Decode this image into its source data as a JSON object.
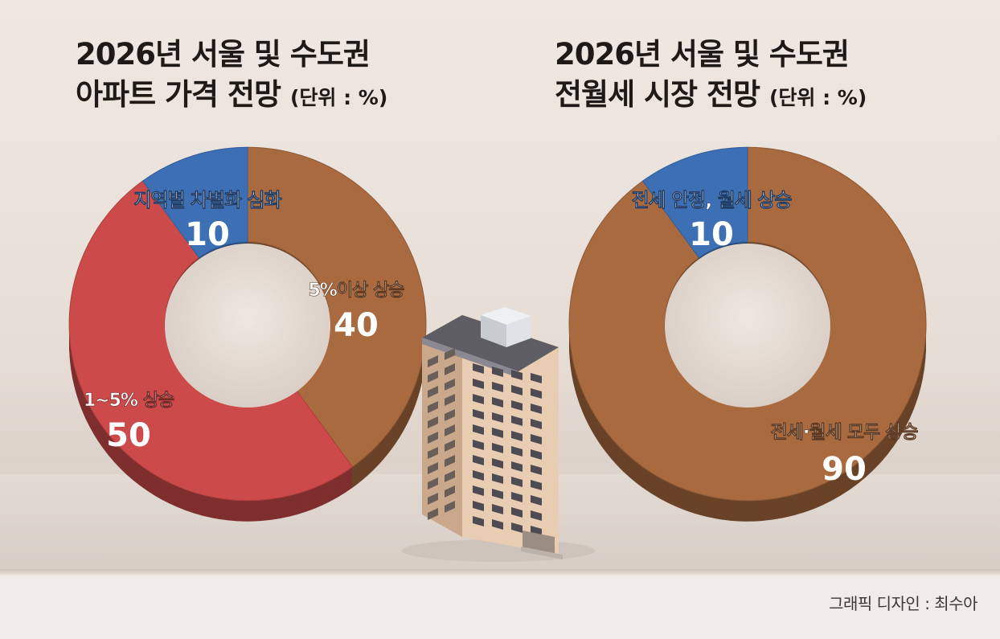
{
  "titles": {
    "left_line1": "2026년 서울 및 수도권",
    "left_line2": "아파트 가격 전망",
    "right_line1": "2026년 서울 및 수도권",
    "right_line2": "전월세 시장 전망",
    "unit": "(단위 : %)"
  },
  "credit": "그래픽 디자인 : 최수아",
  "colors": {
    "brown": "#a96a3f",
    "brown_dark": "#7a4526",
    "red": "#cd4a4a",
    "red_dark": "#8f2a2a",
    "blue": "#3d6fb5",
    "blue_dark": "#274d88"
  },
  "chart_data": [
    {
      "type": "pie",
      "title": "2026년 서울 및 수도권 아파트 가격 전망",
      "unit": "(단위 : %)",
      "slices": [
        {
          "label": "5%이상 상승",
          "value": 40,
          "color": "#a96a3f"
        },
        {
          "label": "1~5% 상승",
          "value": 50,
          "color": "#cd4a4a"
        },
        {
          "label": "지역별 차별화 심화",
          "value": 10,
          "color": "#3d6fb5"
        }
      ]
    },
    {
      "type": "pie",
      "title": "2026년 서울 및 수도권 전월세 시장 전망",
      "unit": "(단위 : %)",
      "slices": [
        {
          "label": "전세·월세 모두 상승",
          "value": 90,
          "color": "#a96a3f"
        },
        {
          "label": "전세 안정, 월세 상승",
          "value": 10,
          "color": "#3d6fb5"
        }
      ]
    }
  ]
}
